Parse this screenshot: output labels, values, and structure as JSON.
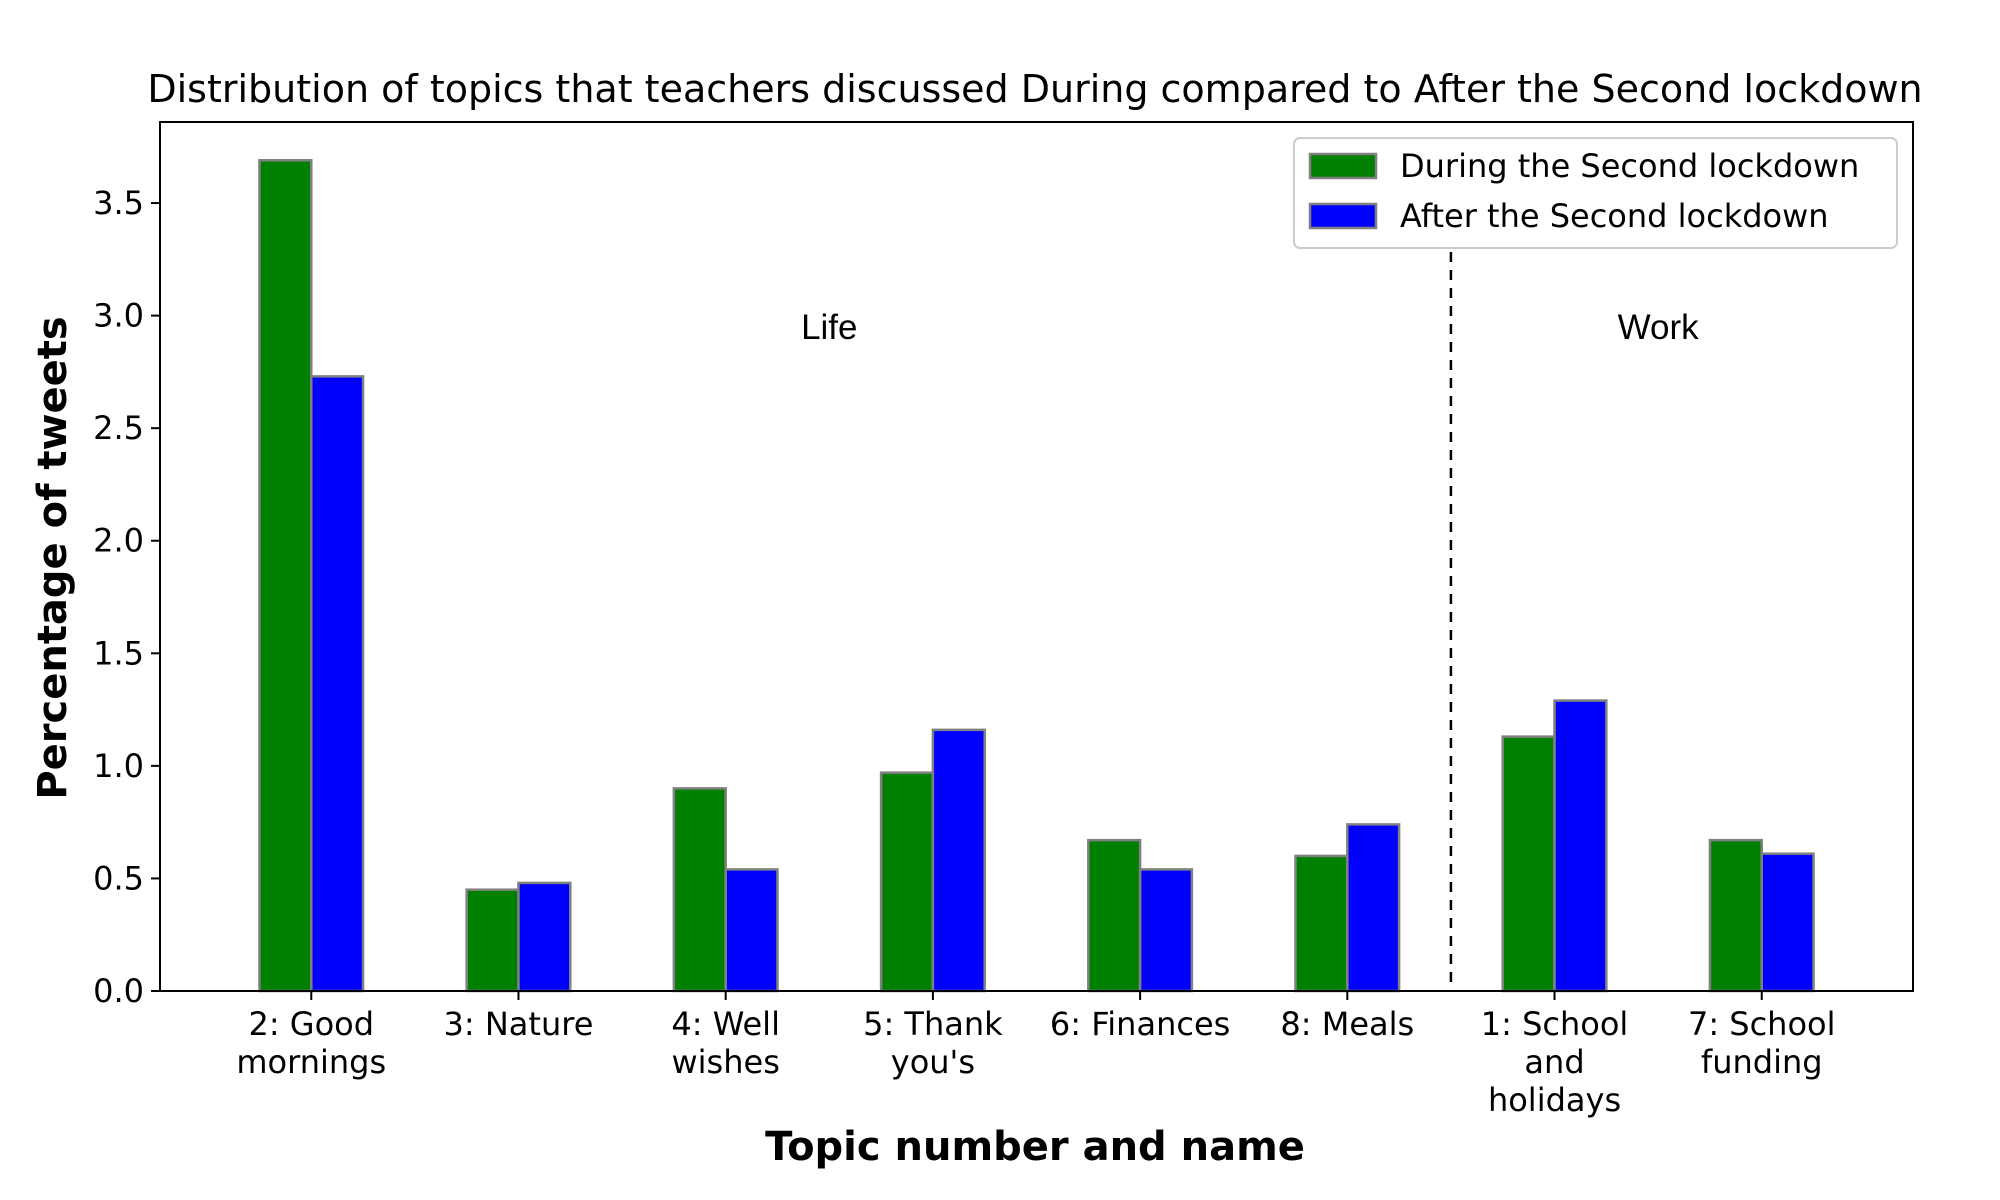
{
  "chart_data": {
    "type": "bar",
    "title": "Distribution of topics that teachers discussed During compared to After the Second lockdown",
    "xlabel": "Topic number and name",
    "ylabel": "Percentage of tweets",
    "categories": [
      [
        "2: Good",
        "mornings"
      ],
      [
        "3: Nature"
      ],
      [
        "4: Well",
        "wishes"
      ],
      [
        "5: Thank",
        "you's"
      ],
      [
        "6: Finances"
      ],
      [
        "8: Meals"
      ],
      [
        "1: School",
        "and",
        "holidays"
      ],
      [
        "7: School",
        "funding"
      ]
    ],
    "series": [
      {
        "name": "During the Second lockdown",
        "color": "#008000",
        "values": [
          3.69,
          0.45,
          0.9,
          0.97,
          0.67,
          0.6,
          1.13,
          0.67
        ]
      },
      {
        "name": "After the Second lockdown",
        "color": "#0000ff",
        "values": [
          2.73,
          0.48,
          0.54,
          1.16,
          0.54,
          0.74,
          1.29,
          0.61
        ]
      }
    ],
    "ylim": [
      0,
      3.86
    ],
    "yticks": [
      0.0,
      0.5,
      1.0,
      1.5,
      2.0,
      2.5,
      3.0,
      3.5
    ],
    "ytick_labels": [
      "0.0",
      "0.5",
      "1.0",
      "1.5",
      "2.0",
      "2.5",
      "3.0",
      "3.5"
    ],
    "grid": false,
    "legend_position": "top-right",
    "bar_edge_color": "#808080",
    "divider_after_category_index": 5,
    "group_labels": [
      {
        "text": "Life",
        "value_y": 2.95,
        "category_position": 2.5
      },
      {
        "text": "Work",
        "value_y": 2.95,
        "category_position": 6.5
      }
    ]
  }
}
